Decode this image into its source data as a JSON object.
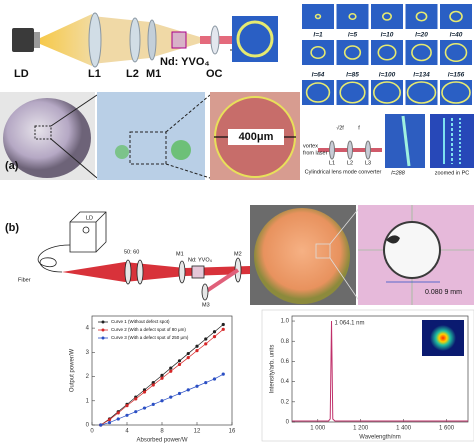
{
  "panel_a": {
    "label": "(a)",
    "schematic_labels": [
      "LD",
      "L1",
      "L2",
      "M1",
      "Nd: YVO₄",
      "OC"
    ],
    "scale_label": "400μm",
    "mode_labels": [
      "l=1",
      "l=5",
      "l=10",
      "l=20",
      "l=40",
      "l=64",
      "l=85",
      "l=100",
      "l=134",
      "l=156"
    ],
    "converter": {
      "input": [
        "vortex",
        "from laser"
      ],
      "title": "Cylindrical lens mode converter",
      "distance_1": "√2f",
      "distance_2": "f",
      "lenses": [
        "L1",
        "L2",
        "L3"
      ],
      "mode": "l=288",
      "zoom": "zoomed in PC"
    }
  },
  "panel_b": {
    "label": "(b)",
    "schematic_labels": [
      "LD",
      "50: 60",
      "M1",
      "Nd: YVO₄",
      "M2",
      "M3",
      "Fiber"
    ],
    "scale_label": "0.080 9 mm"
  },
  "chart_data": [
    {
      "type": "line",
      "markers": true,
      "x_label": "Absorbed power/W",
      "y_label": "Output power/W",
      "x": [
        1,
        2,
        3,
        4,
        5,
        6,
        7,
        8,
        9,
        10,
        11,
        12,
        13,
        14,
        15
      ],
      "series": [
        {
          "name": "Curve 1 (Without defect spot)",
          "color": "#222222",
          "values": [
            0,
            0.25,
            0.55,
            0.85,
            1.15,
            1.45,
            1.75,
            2.05,
            2.35,
            2.65,
            2.95,
            3.25,
            3.55,
            3.85,
            4.15
          ]
        },
        {
          "name": "Curve 2 (With a defect spot of 80 μm)",
          "color": "#d62728",
          "values": [
            0,
            0.22,
            0.5,
            0.8,
            1.08,
            1.36,
            1.65,
            1.93,
            2.22,
            2.5,
            2.78,
            3.07,
            3.35,
            3.65,
            3.95
          ]
        },
        {
          "name": "Curve 3 (With a defect spot of 250 μm)",
          "color": "#2b4fc4",
          "values": [
            0,
            0.1,
            0.25,
            0.4,
            0.55,
            0.7,
            0.85,
            1.0,
            1.15,
            1.3,
            1.45,
            1.6,
            1.75,
            1.9,
            2.1
          ]
        }
      ],
      "xlim": [
        0,
        16
      ],
      "xticks": [
        0,
        4,
        8,
        12,
        16
      ],
      "ylim": [
        0,
        4.5
      ],
      "yticks": [
        0,
        1,
        2,
        3,
        4
      ],
      "legend": "upper left"
    },
    {
      "type": "line",
      "markers": false,
      "x_label": "Wavelength/nm",
      "y_label": "Intensity/arb. units",
      "annotation": "1 064.1 nm",
      "x": [
        880,
        1000,
        1050,
        1058,
        1064.1,
        1070,
        1080,
        1200,
        1700
      ],
      "series": [
        {
          "name": null,
          "color": "#c0306a",
          "values": [
            0.01,
            0.01,
            0.01,
            0.03,
            1,
            0.03,
            0.01,
            0.01,
            0.01
          ]
        }
      ],
      "xlim": [
        880,
        1700
      ],
      "xticks": [
        {
          "value": 1000,
          "label": "1 000"
        },
        {
          "value": 1200,
          "label": "1 200"
        },
        {
          "value": 1400,
          "label": "1 400"
        },
        {
          "value": 1600,
          "label": "1 600"
        }
      ],
      "ylim": [
        0,
        1.05
      ],
      "yticks": [
        0,
        0.2,
        0.4,
        0.6,
        0.8,
        {
          "value": 1,
          "label": "1.0"
        }
      ]
    }
  ]
}
